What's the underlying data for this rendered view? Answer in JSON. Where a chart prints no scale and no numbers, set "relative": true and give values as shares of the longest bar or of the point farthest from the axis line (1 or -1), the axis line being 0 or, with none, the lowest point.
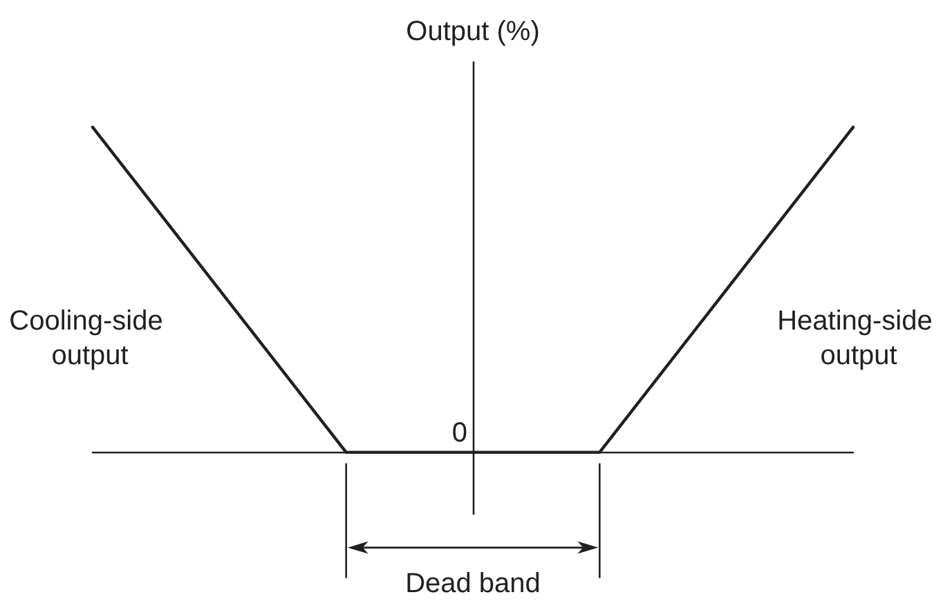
{
  "chart_data": {
    "type": "line",
    "relative": true,
    "ylabel": "Output (%)",
    "categories": [
      null,
      null,
      null,
      null
    ],
    "series": [
      {
        "color": "#231f20",
        "values": [
          1,
          0,
          0,
          1
        ]
      }
    ],
    "annotations": [
      {
        "text": "0",
        "y": 0
      },
      "Cooling-side output",
      "Heating-side output",
      "Dead band"
    ],
    "marker": "none",
    "line_style": "solid",
    "grid": false
  }
}
